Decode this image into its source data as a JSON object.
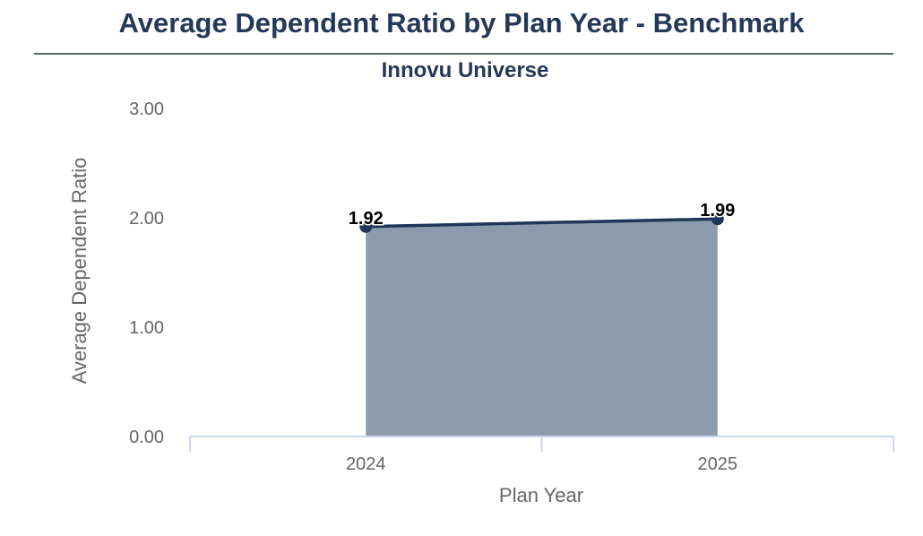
{
  "header": {
    "title": "Average Dependent Ratio by Plan Year - Benchmark"
  },
  "colors": {
    "title": "#253858",
    "line": "#1f3658",
    "area": "#8b9aac",
    "axis": "#ccd6eb",
    "text": "#666666"
  },
  "chart_data": {
    "type": "area",
    "subtitle": "Innovu Universe",
    "categories": [
      "2024",
      "2025"
    ],
    "series": [
      {
        "values": [
          1.92,
          1.99
        ]
      }
    ],
    "data_labels": [
      "1.92",
      "1.99"
    ],
    "xlabel": "Plan Year",
    "ylabel": "Average Dependent Ratio",
    "ylim": [
      0,
      3
    ],
    "yticks": [
      0,
      1,
      2,
      3
    ],
    "ytick_labels": [
      "0.00",
      "1.00",
      "2.00",
      "3.00"
    ],
    "grid": false,
    "legend": "none"
  }
}
